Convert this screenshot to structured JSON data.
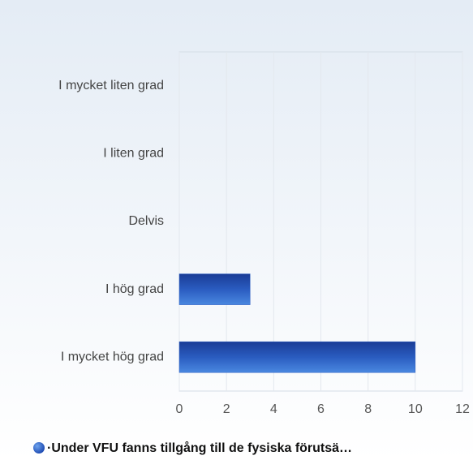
{
  "chart_data": {
    "type": "bar",
    "orientation": "horizontal",
    "categories": [
      "I mycket liten grad",
      "I liten grad",
      "Delvis",
      "I hög grad",
      "I mycket hög grad"
    ],
    "series": [
      {
        "name": "·Under VFU fanns tillgång till de fysiska förutsä…",
        "color": "#2a5cc0",
        "values": [
          0,
          0,
          0,
          3,
          10
        ]
      }
    ],
    "xlim": [
      0,
      12
    ],
    "xticks": [
      0,
      2,
      4,
      6,
      8,
      10,
      12
    ],
    "grid": true,
    "legend": "bottom"
  }
}
